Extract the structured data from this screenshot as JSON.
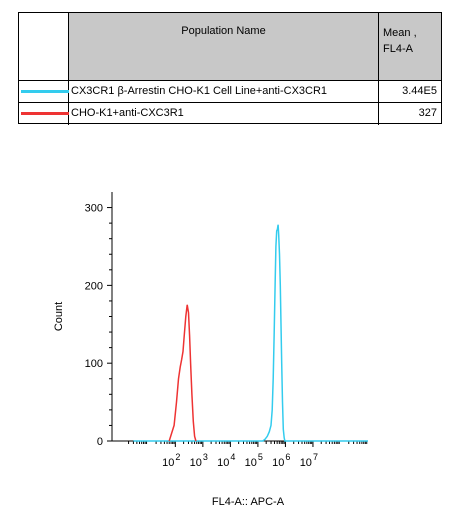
{
  "legend": {
    "header_name": "Population Name",
    "header_mean_line1": "Mean ,",
    "header_mean_line2": "FL4-A",
    "rows": [
      {
        "name": "CX3CR1 β-Arrestin CHO-K1 Cell Line+anti-CX3CR1",
        "mean": "3.44E5",
        "color": "#33ccee"
      },
      {
        "name": "CHO-K1+anti-CXC3R1",
        "mean": "327",
        "color": "#ee3333"
      }
    ]
  },
  "chart_data": {
    "type": "area",
    "xlabel": "FL4-A:: APC-A",
    "ylabel": "Count",
    "xscale": "log",
    "xlim": [
      0.5,
      1000000000
    ],
    "ylim": [
      0,
      320
    ],
    "yticks": [
      "0",
      "100",
      "200",
      "300"
    ],
    "xticks": [
      {
        "value": 100,
        "base": "10",
        "exp": "2"
      },
      {
        "value": 1000,
        "base": "10",
        "exp": "3"
      },
      {
        "value": 10000,
        "base": "10",
        "exp": "4"
      },
      {
        "value": 100000,
        "base": "10",
        "exp": "5"
      },
      {
        "value": 1000000,
        "base": "10",
        "exp": "6"
      },
      {
        "value": 10000000,
        "base": "10",
        "exp": "7"
      }
    ],
    "series": [
      {
        "name": "CX3CR1 β-Arrestin CHO-K1 Cell Line+anti-CX3CR1",
        "color": "#33ccee",
        "points": [
          [
            3,
            0
          ],
          [
            150000,
            0
          ],
          [
            180000,
            2
          ],
          [
            220000,
            6
          ],
          [
            260000,
            12
          ],
          [
            300000,
            20
          ],
          [
            330000,
            40
          ],
          [
            360000,
            80
          ],
          [
            390000,
            140
          ],
          [
            420000,
            200
          ],
          [
            450000,
            250
          ],
          [
            480000,
            270
          ],
          [
            510000,
            272
          ],
          [
            540000,
            278
          ],
          [
            570000,
            265
          ],
          [
            610000,
            240
          ],
          [
            650000,
            200
          ],
          [
            690000,
            150
          ],
          [
            730000,
            100
          ],
          [
            780000,
            50
          ],
          [
            840000,
            15
          ],
          [
            900000,
            4
          ],
          [
            960000,
            0
          ],
          [
            1000000000,
            0
          ]
        ]
      },
      {
        "name": "CHO-K1+anti-CXC3R1",
        "color": "#ee3333",
        "points": [
          [
            60,
            0
          ],
          [
            90,
            20
          ],
          [
            110,
            50
          ],
          [
            130,
            80
          ],
          [
            150,
            95
          ],
          [
            170,
            105
          ],
          [
            190,
            115
          ],
          [
            210,
            135
          ],
          [
            240,
            160
          ],
          [
            270,
            175
          ],
          [
            300,
            165
          ],
          [
            330,
            135
          ],
          [
            360,
            100
          ],
          [
            400,
            60
          ],
          [
            450,
            25
          ],
          [
            500,
            6
          ],
          [
            560,
            0
          ]
        ]
      }
    ]
  }
}
